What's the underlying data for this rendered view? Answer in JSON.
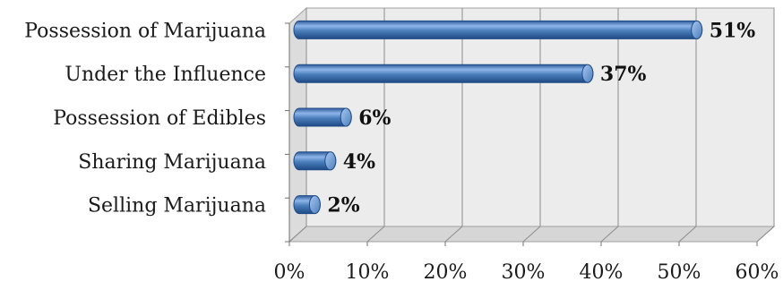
{
  "chart_data": {
    "type": "bar",
    "orientation": "horizontal",
    "style": "3d-cylinder",
    "categories": [
      "Possession of Marijuana",
      "Under the Influence",
      "Possession of Edibles",
      "Sharing Marijuana",
      "Selling Marijuana"
    ],
    "values": [
      51,
      37,
      6,
      4,
      2
    ],
    "data_labels": [
      "51%",
      "37%",
      "6%",
      "4%",
      "2%"
    ],
    "title": "",
    "xlabel": "",
    "ylabel": "",
    "xlim": [
      0,
      60
    ],
    "x_ticks": [
      "0%",
      "10%",
      "20%",
      "30%",
      "40%",
      "50%",
      "60%"
    ],
    "grid": true,
    "legend": "none",
    "colors": {
      "bar": "#4a7ebb",
      "bar_light": "#9cc0ee",
      "bar_dark": "#1f4a85",
      "wall": "#ececec",
      "grid": "#8c8c8c"
    }
  }
}
